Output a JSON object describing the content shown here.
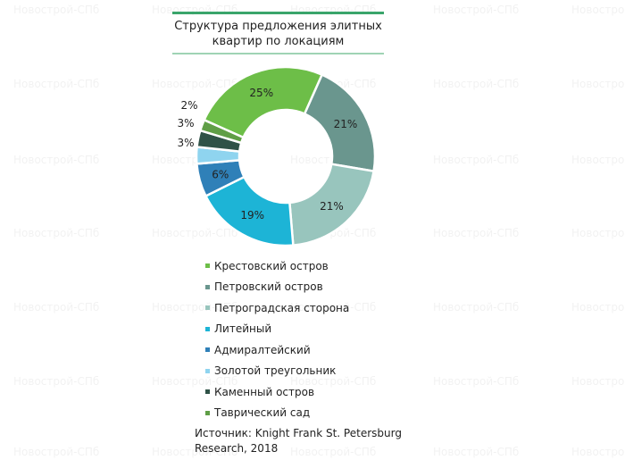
{
  "watermark": "Новострой-СПб",
  "chart_data": {
    "type": "pie",
    "donut": true,
    "title": "Структура предложения элитных квартир по локациям",
    "categories": [
      "Крестовский остров",
      "Петровский остров",
      "Петроградская сторона",
      "Литейный",
      "Адмиралтейский",
      "Золотой треугольник",
      "Каменный остров",
      "Таврический сад"
    ],
    "values": [
      25,
      21,
      21,
      19,
      6,
      3,
      3,
      2
    ],
    "data_labels": [
      "25%",
      "21%",
      "21%",
      "19%",
      "6%",
      "3%",
      "3%",
      "2%"
    ],
    "colors": [
      "#6dbe48",
      "#6a968e",
      "#98c5bd",
      "#1db4d6",
      "#2f80b8",
      "#8fd4ef",
      "#2f5247",
      "#5f9e46"
    ],
    "legend_position": "bottom"
  },
  "title_lines": [
    "Структура предложения элитных",
    "квартир по локациям"
  ],
  "source_lines": [
    "Источник: Knight Frank St. Petersburg",
    "Research, 2018"
  ]
}
